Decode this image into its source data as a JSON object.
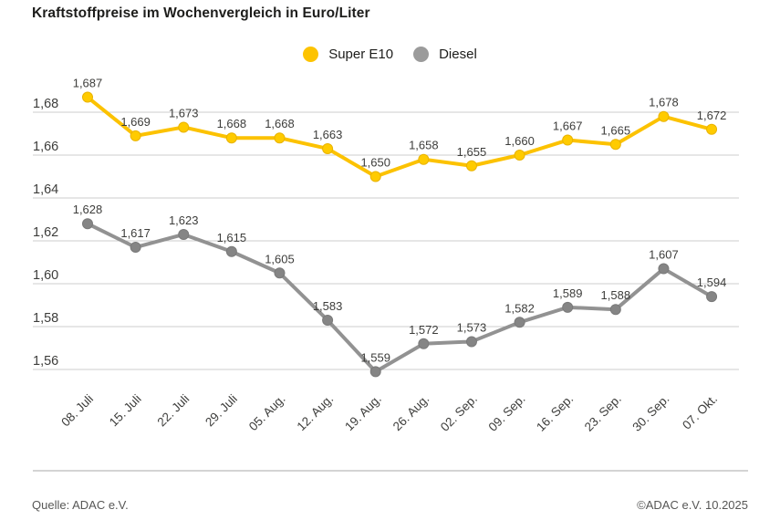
{
  "title": "Kraftstoffpreise im Wochenvergleich in Euro/Liter",
  "legend": {
    "items": [
      {
        "label": "Super E10",
        "color": "#fdc300"
      },
      {
        "label": "Diesel",
        "color": "#9b9b9b"
      }
    ]
  },
  "footer": {
    "source": "Quelle: ADAC e.V.",
    "copyright": "©ADAC e.V. 10.2025"
  },
  "chart_data": {
    "type": "line",
    "title": "Kraftstoffpreise im Wochenvergleich in Euro/Liter",
    "categories": [
      "08. Juli",
      "15. Juli",
      "22. Juli",
      "29. Juli",
      "05. Aug.",
      "12. Aug.",
      "19. Aug.",
      "26. Aug.",
      "02. Sep.",
      "09. Sep.",
      "16. Sep.",
      "23. Sep.",
      "30. Sep.",
      "07. Okt."
    ],
    "series": [
      {
        "name": "Super E10",
        "color": "#fcc200",
        "dot_color": "#ffcb00",
        "dot_stroke": "#e9b300",
        "values": [
          1.687,
          1.669,
          1.673,
          1.668,
          1.668,
          1.663,
          1.65,
          1.658,
          1.655,
          1.66,
          1.667,
          1.665,
          1.678,
          1.672
        ]
      },
      {
        "name": "Diesel",
        "color": "#929292",
        "dot_color": "#858585",
        "dot_stroke": "#7a7a7a",
        "values": [
          1.628,
          1.617,
          1.623,
          1.615,
          1.605,
          1.583,
          1.559,
          1.572,
          1.573,
          1.582,
          1.589,
          1.588,
          1.607,
          1.594
        ]
      }
    ],
    "yticks": {
      "values": [
        1.68,
        1.66,
        1.64,
        1.62,
        1.6,
        1.58,
        1.56
      ],
      "labels": [
        "1,68",
        "1,66",
        "1,64",
        "1,62",
        "1,60",
        "1,58",
        "1,56"
      ]
    },
    "ylim": [
      1.545,
      1.695
    ],
    "grid": true,
    "legend_position": "top-center",
    "value_labels": true,
    "decimal_separator": ","
  }
}
